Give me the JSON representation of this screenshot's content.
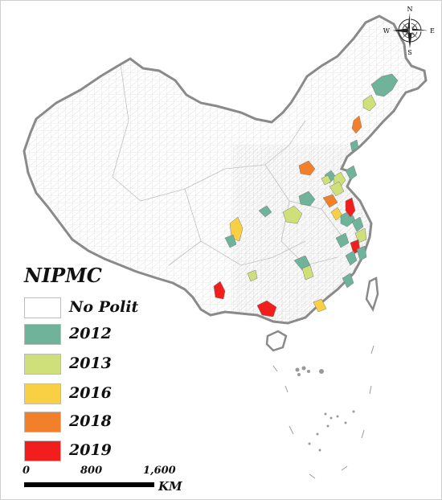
{
  "legend": {
    "title": "NIPMC",
    "items": [
      {
        "label": "No Polit",
        "color": "#ffffff"
      },
      {
        "label": "2012",
        "color": "#6fb39b"
      },
      {
        "label": "2013",
        "color": "#cfe07a"
      },
      {
        "label": "2016",
        "color": "#f9cf44"
      },
      {
        "label": "2018",
        "color": "#f2802b"
      },
      {
        "label": "2019",
        "color": "#f21d1d"
      }
    ]
  },
  "scale_bar": {
    "ticks": [
      "0",
      "800",
      "1,600"
    ],
    "unit": "KM"
  },
  "compass": {
    "north": "N",
    "south": "S",
    "east": "E",
    "west": "W"
  },
  "colors": {
    "outline": "#8a8a8a",
    "boundary": "#d4d4d4"
  }
}
